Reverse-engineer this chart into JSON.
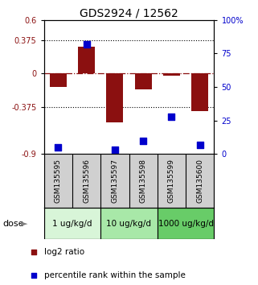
{
  "title": "GDS2924 / 12562",
  "samples": [
    "GSM135595",
    "GSM135596",
    "GSM135597",
    "GSM135598",
    "GSM135599",
    "GSM135600"
  ],
  "log2_ratio": [
    -0.15,
    0.3,
    -0.55,
    -0.18,
    -0.02,
    -0.42
  ],
  "percentile_rank": [
    5,
    82,
    3,
    10,
    28,
    7
  ],
  "ylim_left": [
    -0.9,
    0.6
  ],
  "ylim_right": [
    0,
    100
  ],
  "yticks_left": [
    -0.9,
    -0.375,
    0,
    0.375,
    0.6
  ],
  "ytick_labels_left": [
    "-0.9",
    "-0.375",
    "0",
    "0.375",
    "0.6"
  ],
  "yticks_right": [
    0,
    25,
    50,
    75,
    100
  ],
  "ytick_labels_right": [
    "0",
    "25",
    "50",
    "75",
    "100%"
  ],
  "hlines_dotted": [
    -0.375,
    0.375
  ],
  "hline_dash_dot": 0,
  "bar_color": "#8B1010",
  "square_color": "#0000CC",
  "dose_groups": [
    {
      "label": "1 ug/kg/d",
      "samples": [
        0,
        1
      ],
      "color": "#d8f5d8"
    },
    {
      "label": "10 ug/kg/d",
      "samples": [
        2,
        3
      ],
      "color": "#a8e8a8"
    },
    {
      "label": "1000 ug/kg/d",
      "samples": [
        4,
        5
      ],
      "color": "#68cc68"
    }
  ],
  "dose_label": "dose",
  "legend_red_label": "log2 ratio",
  "legend_blue_label": "percentile rank within the sample",
  "bg_color": "#ffffff",
  "plot_bg_color": "#ffffff",
  "sample_box_color": "#d0d0d0"
}
